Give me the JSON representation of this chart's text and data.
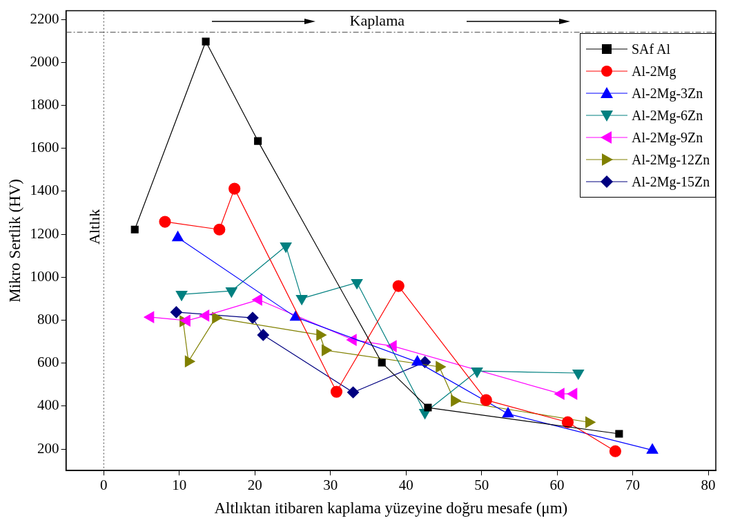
{
  "chart_data": {
    "type": "line",
    "xlabel": "Altlıktan itibaren kaplama yüzeyine doğru mesafe (μm)",
    "ylabel": "Mikro Sertlik (HV)",
    "xlim": [
      -5,
      81
    ],
    "xticks": [
      0,
      10,
      20,
      30,
      40,
      50,
      60,
      70,
      80
    ],
    "ylim": [
      100,
      2240
    ],
    "yticks": [
      200,
      400,
      600,
      800,
      1000,
      1200,
      1400,
      1600,
      1800,
      2000,
      2200
    ],
    "grid": false,
    "legend": "top right",
    "line_style": "solid",
    "ref_lines": [
      {
        "axis": "x",
        "value": 0,
        "label": "Altlık",
        "line_style": "dotted"
      },
      {
        "axis": "y",
        "value": 2140,
        "label": "Kaplama",
        "line_style": "dashed"
      }
    ],
    "series": [
      {
        "name": "SAf Al",
        "color": "#000000",
        "marker": "square",
        "x": [
          4.1,
          13.5,
          20.4,
          36.8,
          42.9,
          68.2
        ],
        "values": [
          1222,
          2097,
          1634,
          602,
          393,
          271
        ]
      },
      {
        "name": "Al-2Mg",
        "color": "#ff0000",
        "marker": "circle",
        "x": [
          8.1,
          15.3,
          17.3,
          30.8,
          39.0,
          50.6,
          61.4,
          67.7
        ],
        "values": [
          1258,
          1222,
          1412,
          467,
          959,
          428,
          325,
          190
        ]
      },
      {
        "name": "Al-2Mg-3Zn",
        "color": "#0000ff",
        "marker": "triangle",
        "x": [
          9.8,
          25.4,
          41.5,
          53.5,
          72.6
        ],
        "values": [
          1184,
          814,
          605,
          364,
          195
        ]
      },
      {
        "name": "Al-2Mg-6Zn",
        "color": "#008080",
        "marker": "triangle-down",
        "x": [
          10.3,
          16.9,
          24.1,
          26.2,
          33.5,
          42.5,
          49.4,
          62.8
        ],
        "values": [
          920,
          936,
          1145,
          901,
          975,
          370,
          563,
          554
        ]
      },
      {
        "name": "Al-2Mg-9Zn",
        "color": "#ff00ff",
        "marker": "triangle-left",
        "x": [
          6.2,
          11.0,
          13.5,
          20.5,
          33.0,
          38.3,
          60.5,
          62.2
        ],
        "values": [
          814,
          798,
          821,
          895,
          708,
          679,
          457,
          457
        ]
      },
      {
        "name": "Al-2Mg-12Zn",
        "color": "#808000",
        "marker": "triangle-right",
        "x": [
          10.5,
          11.2,
          14.8,
          28.6,
          29.3,
          44.4,
          46.4,
          64.2
        ],
        "values": [
          795,
          608,
          811,
          731,
          660,
          583,
          425,
          325
        ]
      },
      {
        "name": "Al-2Mg-15Zn",
        "color": "#000080",
        "marker": "diamond",
        "x": [
          9.6,
          19.7,
          21.1,
          33.0,
          42.5
        ],
        "values": [
          837,
          811,
          731,
          464,
          605
        ]
      }
    ]
  }
}
